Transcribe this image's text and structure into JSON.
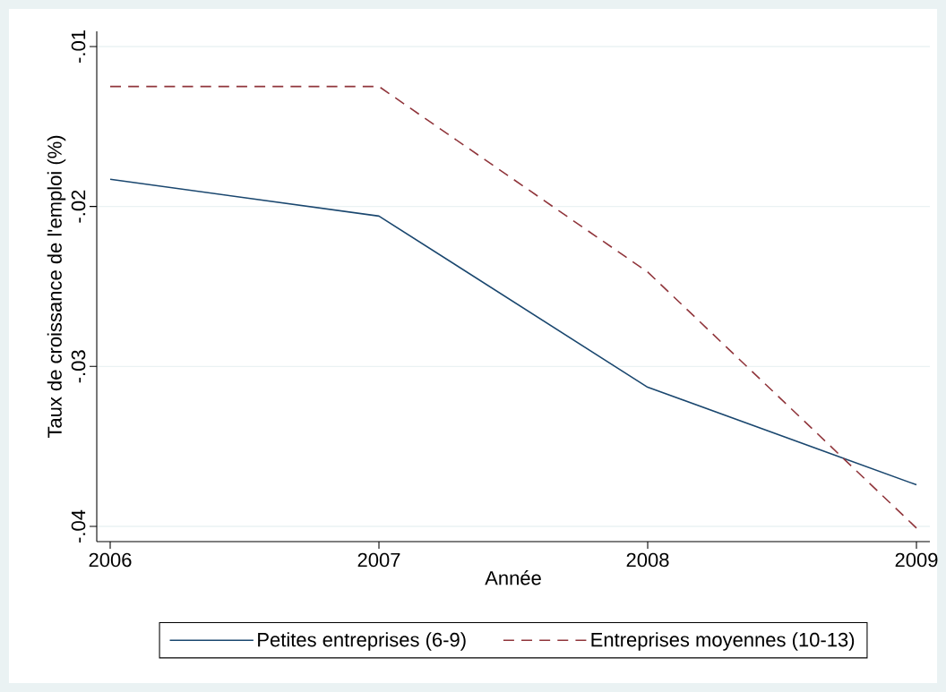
{
  "chart_data": {
    "type": "line",
    "xlabel": "Année",
    "ylabel": "Taux de croissance de l'emploi (%)",
    "x": [
      2006,
      2007,
      2008,
      2009
    ],
    "series": [
      {
        "name": "Petites entreprises (6-9)",
        "color": "#1a476f",
        "line_style": "solid",
        "values": [
          -0.0183,
          -0.0206,
          -0.0313,
          -0.0374
        ]
      },
      {
        "name": "Entreprises moyennes (10-13)",
        "color": "#90353b",
        "line_style": "dashed",
        "values": [
          -0.0125,
          -0.0125,
          -0.0241,
          -0.0401
        ]
      }
    ],
    "xlim": [
      2005.95,
      2009.05
    ],
    "ylim": [
      -0.04095,
      -0.00905
    ],
    "xticks": [
      2006,
      2007,
      2008,
      2009
    ],
    "yticks": [
      {
        "value": -0.04,
        "label": "-.04"
      },
      {
        "value": -0.03,
        "label": "-.03"
      },
      {
        "value": -0.02,
        "label": "-.02"
      },
      {
        "value": -0.01,
        "label": "-.01"
      }
    ],
    "grid": "y",
    "legend": "bottom"
  }
}
